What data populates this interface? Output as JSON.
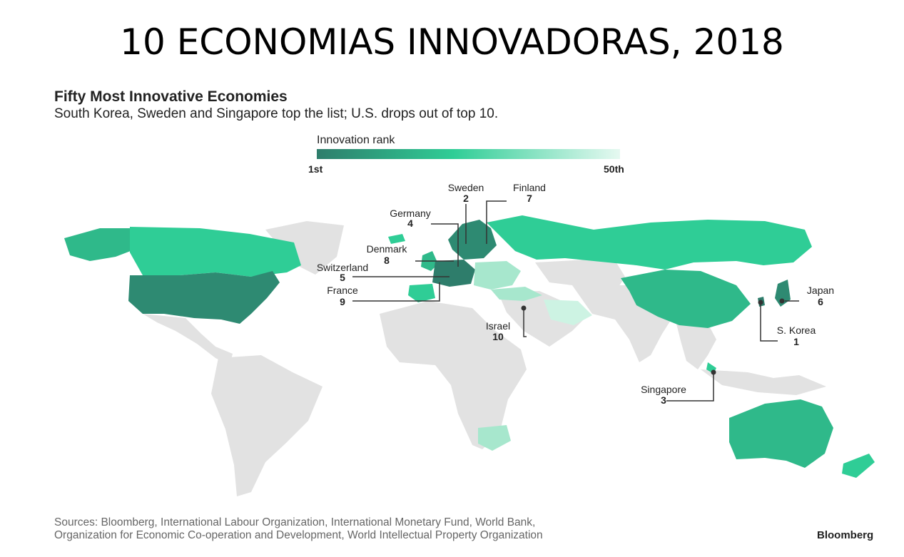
{
  "slide_title": "10 ECONOMIAS INNOVADORAS, 2018",
  "chart": {
    "title": "Fifty Most Innovative Economies",
    "subtitle": "South Korea, Sweden and Singapore top the list; U.S. drops out of top 10."
  },
  "legend": {
    "title": "Innovation rank",
    "min_label": "1st",
    "max_label": "50th",
    "colors": [
      "#2e7d6b",
      "#2fcd96",
      "#c5f2e0"
    ]
  },
  "colors": {
    "land": "#e2e2e2",
    "rank_top": "#2e7d6b",
    "rank_mid": "#2fb98a",
    "rank_high": "#2fcd96",
    "rank_low": "#a7e7cd",
    "rank_lowest": "#cdf3e3",
    "callout": "#333333"
  },
  "chart_data": {
    "type": "map",
    "metric": "Innovation rank",
    "top10": [
      {
        "country": "S. Korea",
        "rank": "1"
      },
      {
        "country": "Sweden",
        "rank": "2"
      },
      {
        "country": "Singapore",
        "rank": "3"
      },
      {
        "country": "Germany",
        "rank": "4"
      },
      {
        "country": "Switzerland",
        "rank": "5"
      },
      {
        "country": "Japan",
        "rank": "6"
      },
      {
        "country": "Finland",
        "rank": "7"
      },
      {
        "country": "Denmark",
        "rank": "8"
      },
      {
        "country": "France",
        "rank": "9"
      },
      {
        "country": "Israel",
        "rank": "10"
      }
    ]
  },
  "footer": {
    "sources_line1": "Sources: Bloomberg, International Labour Organization, International Monetary Fund, World Bank,",
    "sources_line2": "Organization for Economic Co-operation and Development, World Intellectual Property Organization",
    "brand": "Bloomberg"
  }
}
